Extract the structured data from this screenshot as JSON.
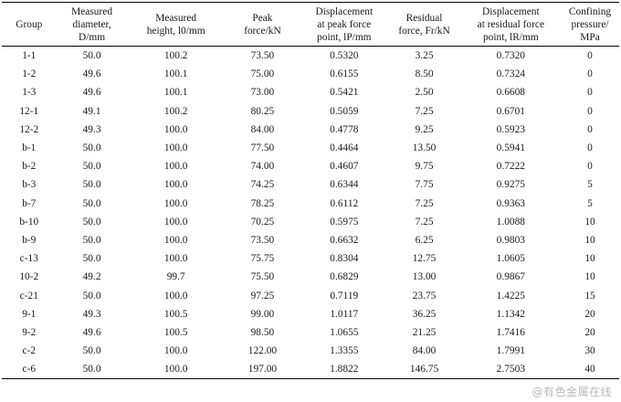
{
  "headers": [
    [
      "Group"
    ],
    [
      "Measured",
      "diameter,",
      "D/mm"
    ],
    [
      "Measured",
      "height, l0/mm"
    ],
    [
      "Peak",
      "force/kN"
    ],
    [
      "Displacement",
      "at peak force",
      "point, lP/mm"
    ],
    [
      "Residual",
      "force, Fr/kN"
    ],
    [
      "Displacement",
      "at residual force",
      "point, lR/mm"
    ],
    [
      "Confining",
      "pressure/",
      "MPa"
    ]
  ],
  "rows": [
    [
      "1-1",
      "50.0",
      "100.2",
      "73.50",
      "0.5320",
      "3.25",
      "0.7320",
      "0"
    ],
    [
      "1-2",
      "49.6",
      "100.1",
      "75.00",
      "0.6155",
      "8.50",
      "0.7324",
      "0"
    ],
    [
      "1-3",
      "49.6",
      "100.1",
      "73.00",
      "0.5421",
      "2.50",
      "0.6608",
      "0"
    ],
    [
      "12-1",
      "49.1",
      "100.2",
      "80.25",
      "0.5059",
      "7.25",
      "0.6701",
      "0"
    ],
    [
      "12-2",
      "49.3",
      "100.0",
      "84.00",
      "0.4778",
      "9.25",
      "0.5923",
      "0"
    ],
    [
      "b-1",
      "50.0",
      "100.0",
      "77.50",
      "0.4464",
      "13.50",
      "0.5941",
      "0"
    ],
    [
      "b-2",
      "50.0",
      "100.0",
      "74.00",
      "0.4607",
      "9.75",
      "0.7222",
      "0"
    ],
    [
      "b-3",
      "50.0",
      "100.0",
      "74.25",
      "0.6344",
      "7.75",
      "0.9275",
      "5"
    ],
    [
      "b-7",
      "50.0",
      "100.0",
      "78.25",
      "0.6112",
      "7.25",
      "0.9363",
      "5"
    ],
    [
      "b-10",
      "50.0",
      "100.0",
      "70.25",
      "0.5975",
      "7.25",
      "1.0088",
      "10"
    ],
    [
      "b-9",
      "50.0",
      "100.0",
      "73.50",
      "0.6632",
      "6.25",
      "0.9803",
      "10"
    ],
    [
      "c-13",
      "50.0",
      "100.0",
      "75.75",
      "0.8304",
      "12.75",
      "1.0605",
      "10"
    ],
    [
      "10-2",
      "49.2",
      "99.7",
      "75.50",
      "0.6829",
      "13.00",
      "0.9867",
      "10"
    ],
    [
      "c-21",
      "50.0",
      "100.0",
      "97.25",
      "0.7119",
      "23.75",
      "1.4225",
      "15"
    ],
    [
      "9-1",
      "49.3",
      "100.5",
      "99.00",
      "1.0117",
      "36.25",
      "1.1342",
      "20"
    ],
    [
      "9-2",
      "49.6",
      "100.5",
      "98.50",
      "1.0655",
      "21.25",
      "1.7416",
      "20"
    ],
    [
      "c-2",
      "50.0",
      "100.0",
      "122.00",
      "1.3355",
      "84.00",
      "1.7991",
      "30"
    ],
    [
      "c-6",
      "50.0",
      "100.0",
      "197.00",
      "1.8822",
      "146.75",
      "2.7503",
      "40"
    ]
  ],
  "watermark": "@有色金属在线"
}
